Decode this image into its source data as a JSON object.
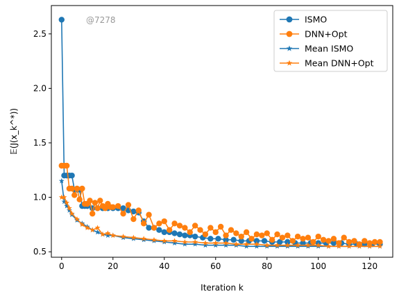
{
  "watermark": "@7278",
  "chart_data": {
    "type": "line",
    "title": "",
    "xlabel": "Iteration k",
    "ylabel": "𝔼(J(x_k^*))",
    "xlim": [
      -4,
      129
    ],
    "ylim": [
      0.45,
      2.76
    ],
    "xticks": [
      0,
      20,
      40,
      60,
      80,
      100,
      120
    ],
    "yticks": [
      0.5,
      1.0,
      1.5,
      2.0,
      2.5
    ],
    "xtick_labels": [
      "0",
      "20",
      "40",
      "60",
      "80",
      "100",
      "120"
    ],
    "ytick_labels": [
      "0.5",
      "1.0",
      "1.5",
      "2.0",
      "2.5"
    ],
    "grid": false,
    "legend_position": "top-right",
    "series": [
      {
        "name": "ISMO",
        "color": "#1f77b4",
        "marker": "circle",
        "x": [
          0,
          1,
          2,
          3,
          4,
          5,
          6,
          7,
          8,
          9,
          10,
          12,
          14,
          16,
          18,
          20,
          22,
          24,
          26,
          28,
          30,
          32,
          34,
          36,
          38,
          40,
          42,
          44,
          46,
          48,
          50,
          52,
          55,
          58,
          61,
          64,
          67,
          70,
          73,
          76,
          79,
          82,
          85,
          88,
          91,
          94,
          97,
          100,
          103,
          106,
          109,
          112,
          115,
          118,
          121,
          124
        ],
        "values": [
          2.63,
          1.2,
          1.2,
          1.2,
          1.2,
          1.07,
          1.07,
          1.07,
          0.92,
          0.92,
          0.92,
          0.9,
          0.9,
          0.9,
          0.9,
          0.9,
          0.9,
          0.9,
          0.88,
          0.87,
          0.86,
          0.78,
          0.72,
          0.72,
          0.7,
          0.68,
          0.68,
          0.67,
          0.66,
          0.65,
          0.65,
          0.64,
          0.63,
          0.62,
          0.62,
          0.61,
          0.61,
          0.6,
          0.6,
          0.6,
          0.6,
          0.59,
          0.59,
          0.59,
          0.58,
          0.58,
          0.58,
          0.58,
          0.58,
          0.58,
          0.58,
          0.57,
          0.57,
          0.57,
          0.57,
          0.57
        ]
      },
      {
        "name": "DNN+Opt",
        "color": "#ff7f0e",
        "marker": "circle",
        "x": [
          0,
          1,
          2,
          3,
          4,
          5,
          6,
          7,
          8,
          9,
          10,
          11,
          12,
          13,
          14,
          15,
          16,
          17,
          18,
          19,
          20,
          22,
          24,
          26,
          28,
          30,
          32,
          34,
          36,
          38,
          40,
          42,
          44,
          46,
          48,
          50,
          52,
          54,
          56,
          58,
          60,
          62,
          64,
          66,
          68,
          70,
          72,
          74,
          76,
          78,
          80,
          82,
          84,
          86,
          88,
          90,
          92,
          94,
          96,
          98,
          100,
          102,
          104,
          106,
          108,
          110,
          112,
          114,
          116,
          118,
          120,
          122,
          124
        ],
        "values": [
          1.29,
          1.29,
          1.29,
          1.08,
          1.08,
          1.02,
          1.08,
          0.98,
          1.08,
          0.94,
          0.94,
          0.97,
          0.85,
          0.95,
          0.9,
          0.97,
          0.92,
          0.9,
          0.94,
          0.91,
          0.91,
          0.92,
          0.85,
          0.93,
          0.8,
          0.88,
          0.76,
          0.84,
          0.72,
          0.76,
          0.78,
          0.7,
          0.76,
          0.74,
          0.72,
          0.68,
          0.74,
          0.7,
          0.66,
          0.72,
          0.68,
          0.73,
          0.65,
          0.7,
          0.67,
          0.64,
          0.68,
          0.62,
          0.66,
          0.65,
          0.67,
          0.61,
          0.66,
          0.63,
          0.65,
          0.6,
          0.64,
          0.62,
          0.63,
          0.59,
          0.64,
          0.61,
          0.6,
          0.62,
          0.58,
          0.63,
          0.59,
          0.6,
          0.57,
          0.6,
          0.58,
          0.59,
          0.59
        ]
      },
      {
        "name": "Mean ISMO",
        "color": "#1f77b4",
        "marker": "star",
        "x": [
          0,
          1,
          2,
          3,
          4,
          6,
          8,
          10,
          12,
          14,
          16,
          18,
          20,
          24,
          28,
          32,
          36,
          40,
          44,
          48,
          52,
          56,
          60,
          64,
          68,
          72,
          76,
          80,
          84,
          88,
          92,
          96,
          100,
          104,
          108,
          112,
          116,
          120,
          124
        ],
        "values": [
          1.15,
          0.96,
          0.92,
          0.88,
          0.84,
          0.79,
          0.76,
          0.73,
          0.7,
          0.68,
          0.66,
          0.65,
          0.65,
          0.63,
          0.62,
          0.61,
          0.6,
          0.59,
          0.58,
          0.57,
          0.57,
          0.56,
          0.56,
          0.56,
          0.56,
          0.55,
          0.55,
          0.55,
          0.55,
          0.55,
          0.55,
          0.55,
          0.55,
          0.55,
          0.55,
          0.55,
          0.55,
          0.55,
          0.55
        ]
      },
      {
        "name": "Mean DNN+Opt",
        "color": "#ff7f0e",
        "marker": "star",
        "x": [
          0,
          1,
          2,
          3,
          4,
          6,
          8,
          10,
          12,
          14,
          16,
          18,
          20,
          24,
          28,
          32,
          36,
          40,
          44,
          48,
          52,
          56,
          60,
          64,
          68,
          72,
          76,
          80,
          84,
          88,
          92,
          96,
          100,
          104,
          108,
          112,
          116,
          120,
          124
        ],
        "values": [
          1.0,
          1.0,
          0.95,
          0.9,
          0.85,
          0.8,
          0.75,
          0.72,
          0.7,
          0.72,
          0.66,
          0.67,
          0.65,
          0.64,
          0.63,
          0.62,
          0.61,
          0.6,
          0.6,
          0.59,
          0.59,
          0.58,
          0.58,
          0.58,
          0.57,
          0.57,
          0.57,
          0.56,
          0.56,
          0.56,
          0.56,
          0.56,
          0.56,
          0.55,
          0.55,
          0.55,
          0.55,
          0.55,
          0.55
        ]
      }
    ]
  }
}
